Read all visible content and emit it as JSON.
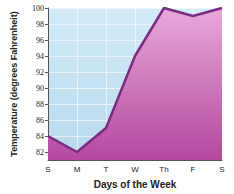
{
  "chart_data": {
    "type": "area",
    "x_label": "Days of the Week",
    "y_label": "Temperature (degrees Fahrenheit)",
    "categories": [
      "S",
      "M",
      "T",
      "W",
      "Th",
      "F",
      "S"
    ],
    "values": [
      84,
      82,
      85,
      94,
      100,
      99,
      100
    ],
    "color": "#7b2b80",
    "ylim": [
      81,
      100
    ],
    "yticks": [
      82,
      84,
      86,
      88,
      90,
      92,
      94,
      96,
      98,
      100
    ],
    "grid": true
  }
}
